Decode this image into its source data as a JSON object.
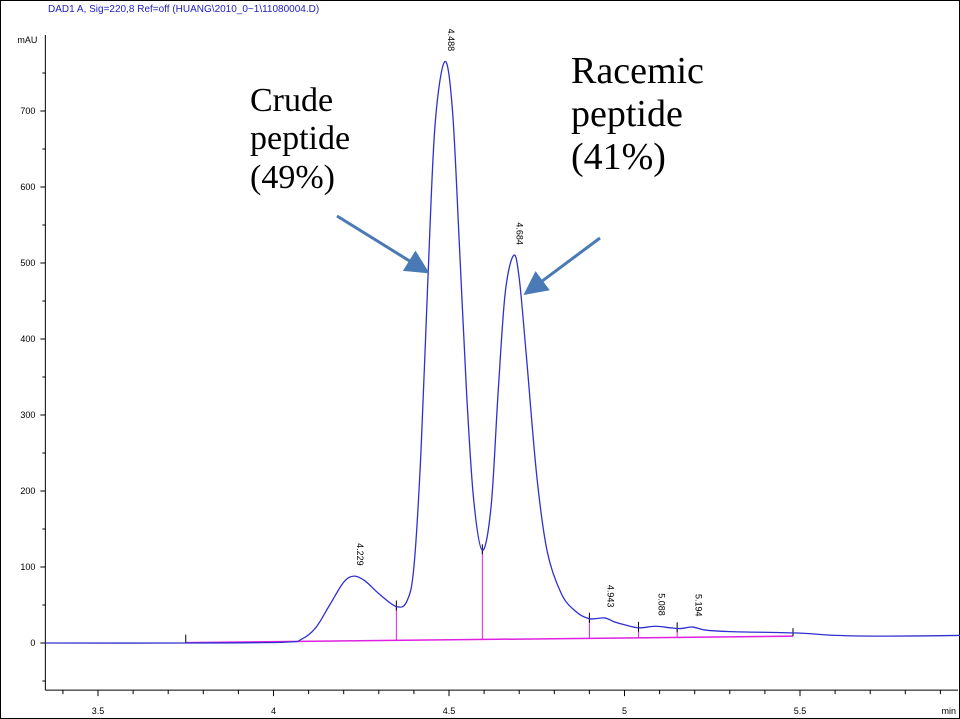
{
  "chart_data": {
    "type": "line",
    "title": "DAD1 A, Sig=220,8 Ref=off (HUANG\\2010_0~1\\11080004.D)",
    "ylabel": "mAU",
    "xlabel": "min",
    "xlim": [
      3.35,
      5.96
    ],
    "ylim": [
      -62,
      800
    ],
    "x_ticks": [
      3.5,
      4,
      4.5,
      5,
      5.5
    ],
    "x_tick_labels": [
      "3.5",
      "4",
      "4.5",
      "5",
      "5.5"
    ],
    "y_ticks": [
      0,
      100,
      200,
      300,
      400,
      500,
      600,
      700
    ],
    "y_tick_labels": [
      "0",
      "100",
      "200",
      "300",
      "400",
      "500",
      "600",
      "700"
    ],
    "grid": false,
    "series": [
      {
        "color": "#3030d0",
        "x": [
          3.35,
          3.75,
          4.03,
          4.08,
          4.12,
          4.16,
          4.2,
          4.229,
          4.26,
          4.3,
          4.35,
          4.38,
          4.4,
          4.42,
          4.44,
          4.46,
          4.488,
          4.51,
          4.53,
          4.55,
          4.57,
          4.595,
          4.62,
          4.64,
          4.66,
          4.684,
          4.7,
          4.72,
          4.75,
          4.78,
          4.82,
          4.86,
          4.9,
          4.943,
          4.97,
          5.0,
          5.04,
          5.088,
          5.13,
          5.16,
          5.194,
          5.23,
          5.3,
          5.5,
          5.6,
          5.75,
          5.96
        ],
        "y": [
          0,
          0,
          1,
          5,
          20,
          50,
          80,
          88,
          82,
          65,
          48,
          55,
          100,
          250,
          480,
          680,
          765,
          700,
          520,
          330,
          190,
          122,
          180,
          330,
          460,
          510,
          480,
          380,
          220,
          120,
          65,
          42,
          32,
          33,
          28,
          24,
          20,
          22,
          20,
          19,
          21,
          17,
          15,
          13,
          10,
          9,
          10
        ]
      }
    ],
    "baseline": {
      "color": "#e020e0",
      "x": [
        3.75,
        5.48
      ],
      "y": [
        0.5,
        9
      ]
    },
    "peak_drop_lines": [
      4.35,
      4.595,
      4.9,
      5.04,
      5.15
    ],
    "peak_labels": [
      {
        "x": 4.229,
        "y": 88,
        "label": "4.229"
      },
      {
        "x": 4.488,
        "y": 765,
        "label": "4.488"
      },
      {
        "x": 4.684,
        "y": 510,
        "label": "4.684"
      },
      {
        "x": 4.943,
        "y": 33,
        "label": "4.943"
      },
      {
        "x": 5.088,
        "y": 22,
        "label": "5.088"
      },
      {
        "x": 5.194,
        "y": 21,
        "label": "5.194"
      }
    ],
    "annotations": [
      {
        "lines": [
          "Crude",
          "peptide",
          "(49%)"
        ],
        "arrow_to": {
          "x": 4.43,
          "y": 480
        }
      },
      {
        "lines": [
          "Racemic",
          "peptide",
          "(41%)"
        ],
        "arrow_to": {
          "x": 4.76,
          "y": 460
        }
      }
    ],
    "arrow_color": "#4a7ab5"
  }
}
